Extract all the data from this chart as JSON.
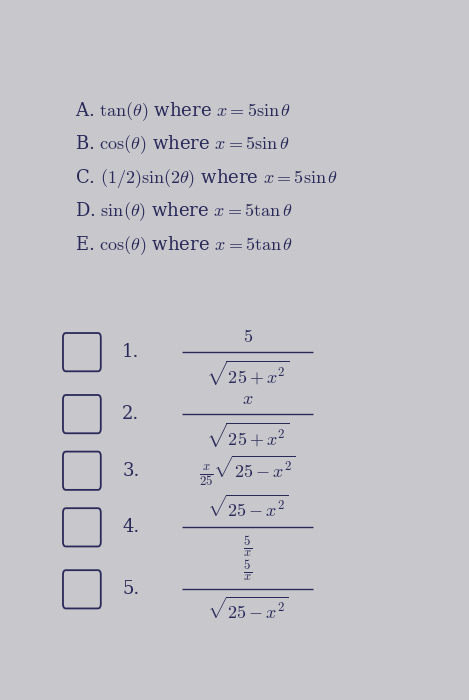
{
  "bg_color": "#c8c8cc",
  "text_color": "#2a2a5a",
  "title_lines": [
    "A. $\\tan(\\theta)$ where $x = 5\\sin\\theta$",
    "B. $\\cos(\\theta)$ where $x = 5\\sin\\theta$",
    "C. $(1/2)\\sin(2\\theta)$ where $x = 5\\sin\\theta$",
    "D. $\\sin(\\theta)$ where $x = 5\\tan\\theta$",
    "E. $\\cos(\\theta)$ where $x = 5\\tan\\theta$"
  ],
  "items": [
    {
      "num": "1.",
      "numerator": "$5$",
      "denominator": "$\\sqrt{25+x^2}$"
    },
    {
      "num": "2.",
      "numerator": "$x$",
      "denominator": "$\\sqrt{25+x^2}$"
    },
    {
      "num": "3.",
      "numerator": "$\\frac{x}{25}\\sqrt{25-x^2}$",
      "denominator": null
    },
    {
      "num": "4.",
      "numerator": "$\\sqrt{25-x^2}$",
      "denominator": "$\\frac{5}{x}$"
    },
    {
      "num": "5.",
      "numerator": "$\\frac{5}{x}$",
      "denominator": "$\\sqrt{25-x^2}$"
    }
  ],
  "font_size_title": 13,
  "font_size_items": 13
}
